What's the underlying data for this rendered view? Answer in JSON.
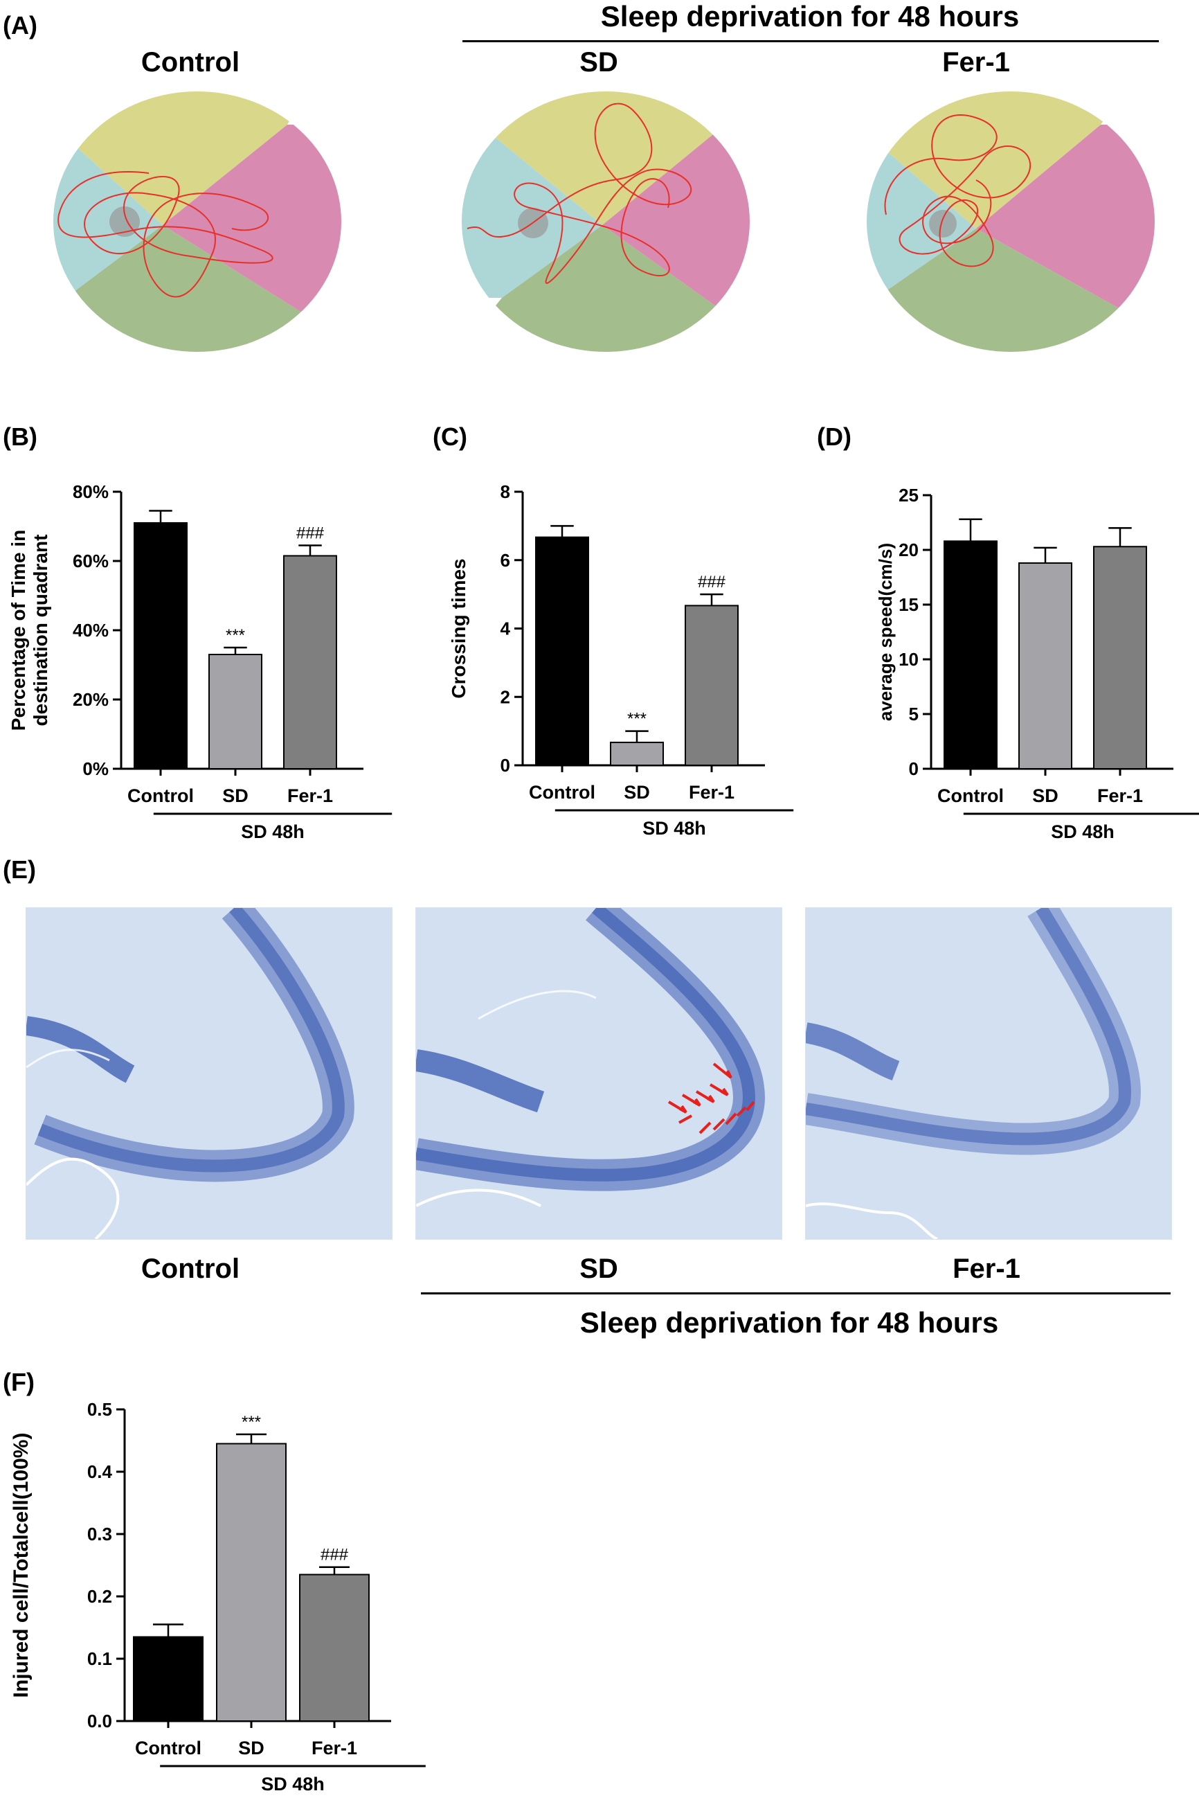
{
  "panel_labels": {
    "A": "(A)",
    "B": "(B)",
    "C": "(C)",
    "D": "(D)",
    "E": "(E)",
    "F": "(F)"
  },
  "panel_a": {
    "header": "Sleep deprivation for 48 hours",
    "groups": [
      "Control",
      "SD",
      "Fer-1"
    ],
    "quadrant_colors": {
      "top": "#d9d88a",
      "right": "#d98ab1",
      "bottom": "#a3bd8d",
      "left": "#add6d6",
      "platform": "#999999",
      "path": "#e8302a"
    }
  },
  "panel_e": {
    "groups": [
      "Control",
      "SD",
      "Fer-1"
    ],
    "header": "Sleep deprivation for 48 hours",
    "stain_colors": {
      "background": "#d3e0f2",
      "cells": "#4a68b8",
      "arrows": "#e8201c"
    }
  },
  "chart_data": [
    {
      "id": "B",
      "type": "bar",
      "categories": [
        "Control",
        "SD",
        "Fer-1"
      ],
      "values": [
        71,
        33,
        61.5
      ],
      "errors": [
        3.5,
        2,
        3
      ],
      "significance": [
        "",
        "***",
        "###"
      ],
      "ylabel": "Percentage of Time in destination quadrant",
      "ylim": [
        0,
        80
      ],
      "ticks": [
        "0%",
        "20%",
        "40%",
        "60%",
        "80%"
      ],
      "group_label": "SD 48h",
      "colors": [
        "#000000",
        "#a3a3a8",
        "#7f7f7f"
      ]
    },
    {
      "id": "C",
      "type": "bar",
      "categories": [
        "Control",
        "SD",
        "Fer-1"
      ],
      "values": [
        6.67,
        0.67,
        4.67
      ],
      "errors": [
        0.33,
        0.33,
        0.33
      ],
      "significance": [
        "",
        "***",
        "###"
      ],
      "ylabel": "Crossing times",
      "ylim": [
        0,
        8
      ],
      "ticks": [
        "0",
        "2",
        "4",
        "6",
        "8"
      ],
      "group_label": "SD 48h",
      "colors": [
        "#000000",
        "#a3a3a8",
        "#7f7f7f"
      ]
    },
    {
      "id": "D",
      "type": "bar",
      "categories": [
        "Control",
        "SD",
        "Fer-1"
      ],
      "values": [
        20.8,
        18.8,
        20.3
      ],
      "errors": [
        2,
        1.4,
        1.7
      ],
      "significance": [
        "",
        "",
        ""
      ],
      "ylabel": "average speed(cm/s)",
      "ylim": [
        0,
        25
      ],
      "ticks": [
        "0",
        "5",
        "10",
        "15",
        "20",
        "25"
      ],
      "group_label": "SD 48h",
      "colors": [
        "#000000",
        "#a3a3a8",
        "#7f7f7f"
      ]
    },
    {
      "id": "F",
      "type": "bar",
      "categories": [
        "Control",
        "SD",
        "Fer-1"
      ],
      "values": [
        0.135,
        0.445,
        0.235
      ],
      "errors": [
        0.02,
        0.015,
        0.012
      ],
      "significance": [
        "",
        "***",
        "###"
      ],
      "ylabel": "Injured cell/Totalcell(100%)",
      "ylim": [
        0,
        0.5
      ],
      "ticks": [
        "0.0",
        "0.1",
        "0.2",
        "0.3",
        "0.4",
        "0.5"
      ],
      "group_label": "SD 48h",
      "colors": [
        "#000000",
        "#a3a3a8",
        "#7f7f7f"
      ]
    }
  ]
}
